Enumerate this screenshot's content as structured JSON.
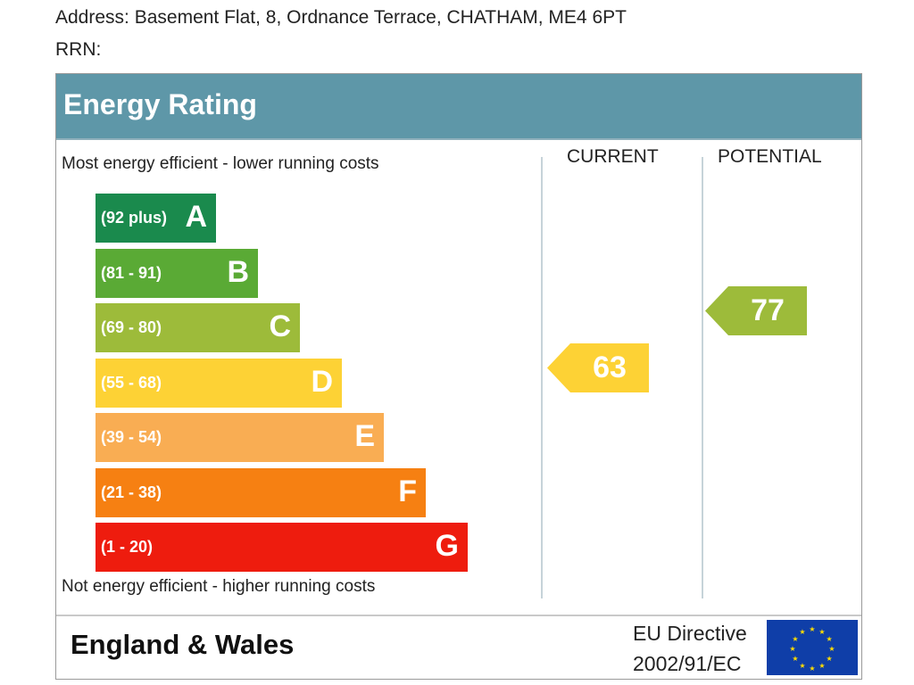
{
  "address": "Address: Basement Flat, 8, Ordnance Terrace, CHATHAM, ME4 6PT",
  "rrn": "RRN:",
  "chart_data": {
    "type": "bar",
    "title": "Energy Rating",
    "top_caption": "Most energy efficient - lower running costs",
    "bottom_caption": "Not energy efficient - higher running costs",
    "column_current": "CURRENT",
    "column_potential": "POTENTIAL",
    "bands": [
      {
        "letter": "A",
        "range": "(92 plus)",
        "color": "#1a8a4d"
      },
      {
        "letter": "B",
        "range": "(81 - 91)",
        "color": "#5aaa35"
      },
      {
        "letter": "C",
        "range": "(69 - 80)",
        "color": "#9dbb3a"
      },
      {
        "letter": "D",
        "range": "(55 - 68)",
        "color": "#fdd235"
      },
      {
        "letter": "E",
        "range": "(39 - 54)",
        "color": "#f9ad53"
      },
      {
        "letter": "F",
        "range": "(21 - 38)",
        "color": "#f68012"
      },
      {
        "letter": "G",
        "range": "(1 - 20)",
        "color": "#ee1c0e"
      }
    ],
    "current": {
      "value": "63",
      "band": "D",
      "color": "#fdd235"
    },
    "potential": {
      "value": "77",
      "band": "C",
      "color": "#9dbb3a"
    }
  },
  "footer": {
    "region": "England & Wales",
    "directive_line1": "EU Directive",
    "directive_line2": "2002/91/EC"
  }
}
